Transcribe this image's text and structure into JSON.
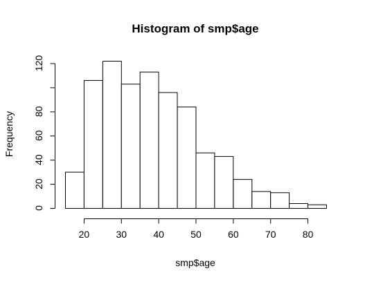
{
  "chart_data": {
    "type": "bar",
    "title": "Histogram of smp$age",
    "xlabel": "smp$age",
    "ylabel": "Frequency",
    "bin_edges": [
      15,
      20,
      25,
      30,
      35,
      40,
      45,
      50,
      55,
      60,
      65,
      70,
      75,
      80,
      85
    ],
    "values": [
      30,
      106,
      122,
      103,
      113,
      96,
      84,
      46,
      43,
      24,
      14,
      13,
      4,
      3
    ],
    "xlim": [
      15,
      85
    ],
    "ylim": [
      0,
      122
    ],
    "xticks": [
      20,
      30,
      40,
      50,
      60,
      70,
      80
    ],
    "yticks": [
      0,
      20,
      40,
      60,
      80,
      100,
      120
    ],
    "yticks_labeled": [
      0,
      20,
      40,
      60,
      80,
      120
    ],
    "grid": false,
    "legend": "none"
  }
}
